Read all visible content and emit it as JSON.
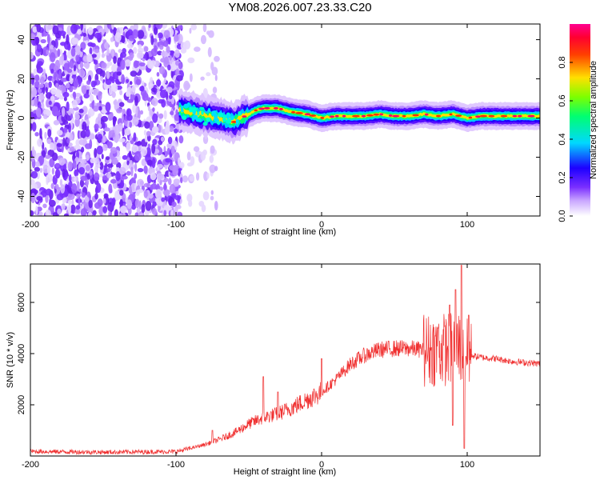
{
  "title": "YM08.2026.007.23.33.C20",
  "chart_data": [
    {
      "type": "heatmap",
      "xlabel": "Height of straight line (km)",
      "ylabel": "Frequency (Hz)",
      "xlim": [
        -200,
        150
      ],
      "ylim": [
        -50,
        48
      ],
      "xticks": [
        -200,
        -100,
        0,
        100
      ],
      "xtick_labels": [
        "-200",
        "-100",
        "0",
        "100"
      ],
      "yticks": [
        -40,
        -20,
        0,
        20,
        40
      ],
      "ytick_labels": [
        "-40",
        "-20",
        "0",
        "20",
        "40"
      ],
      "colorbar": {
        "label": "Normalized spectral amplitude",
        "range": [
          0,
          1
        ],
        "ticks": [
          0.0,
          0.2,
          0.4,
          0.6,
          0.8
        ],
        "tick_labels": [
          "0.0",
          "0.2",
          "0.4",
          "0.6",
          "0.8"
        ],
        "colormap": "rainbow (white-violet-blue-cyan-green-yellow-red-magenta)"
      },
      "ridge": {
        "x": [
          -96,
          -90,
          -80,
          -70,
          -60,
          -50,
          -45,
          -40,
          -30,
          -20,
          -10,
          0,
          10,
          20,
          30,
          40,
          50,
          60,
          70,
          80,
          90,
          100,
          110,
          120,
          130,
          140,
          150
        ],
        "y": [
          4,
          3,
          1,
          0,
          -2,
          2,
          4,
          5,
          5,
          3,
          2,
          0,
          1,
          1,
          1,
          2,
          1,
          1,
          2,
          1,
          2,
          0,
          1,
          1,
          1,
          1,
          1
        ]
      }
    },
    {
      "type": "line",
      "xlabel": "Height of straight line (km)",
      "ylabel": "SNR (10 * v/v)",
      "xlim": [
        -200,
        150
      ],
      "ylim": [
        0,
        7500
      ],
      "xticks": [
        -200,
        -100,
        0,
        100
      ],
      "xtick_labels": [
        "-200",
        "-100",
        "0",
        "100"
      ],
      "yticks": [
        2000,
        4000,
        6000
      ],
      "ytick_labels": [
        "2000",
        "4000",
        "6000"
      ],
      "color": "#f03030",
      "trend": {
        "x": [
          -200,
          -150,
          -100,
          -90,
          -80,
          -70,
          -60,
          -50,
          -40,
          -30,
          -20,
          -10,
          0,
          10,
          20,
          30,
          40,
          50,
          60,
          70,
          80,
          90,
          95,
          100,
          105,
          110,
          120,
          130,
          140,
          150
        ],
        "y": [
          180,
          150,
          170,
          300,
          450,
          650,
          900,
          1250,
          1500,
          1650,
          1900,
          2200,
          2500,
          3000,
          3600,
          3950,
          4150,
          4200,
          4200,
          4150,
          4150,
          4200,
          4300,
          4000,
          3900,
          3850,
          3800,
          3700,
          3650,
          3600
        ]
      },
      "spikes": [
        {
          "x": -75,
          "y": 1000
        },
        {
          "x": -40,
          "y": 3100
        },
        {
          "x": -30,
          "y": 2500
        },
        {
          "x": 0,
          "y": 3800
        },
        {
          "x": 80,
          "y": 5000
        },
        {
          "x": 88,
          "y": 5900
        },
        {
          "x": 92,
          "y": 6500
        },
        {
          "x": 96,
          "y": 7450
        },
        {
          "x": 98,
          "y": 7400
        },
        {
          "x": 101,
          "y": 5500
        },
        {
          "x": 90,
          "y": 1200
        },
        {
          "x": 98,
          "y": 300
        }
      ]
    }
  ]
}
